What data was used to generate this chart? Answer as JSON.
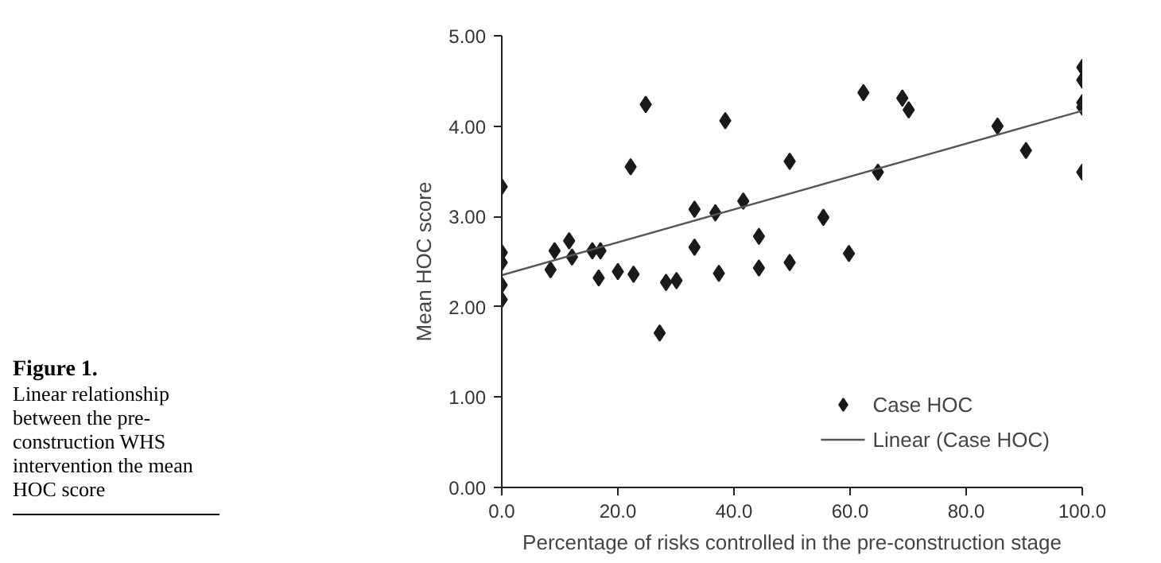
{
  "chart_data": {
    "type": "scatter",
    "title": "Figure 1.",
    "annotations": [
      "Linear relationship between the pre-construction WHS intervention the mean HOC score"
    ],
    "xlabel": "Percentage of risks controlled in the pre-construction stage",
    "ylabel": "Mean HOC score",
    "xlim": [
      0,
      100
    ],
    "ylim": [
      0,
      5
    ],
    "xticks": [
      {
        "value": 0,
        "label": "0.0"
      },
      {
        "value": 20,
        "label": "20.0"
      },
      {
        "value": 40,
        "label": "40.0"
      },
      {
        "value": 60,
        "label": "60.0"
      },
      {
        "value": 80,
        "label": "80.0"
      },
      {
        "value": 100,
        "label": "100.0"
      }
    ],
    "yticks": [
      {
        "value": 0,
        "label": "0.00"
      },
      {
        "value": 1,
        "label": "1.00"
      },
      {
        "value": 2,
        "label": "2.00"
      },
      {
        "value": 3,
        "label": "3.00"
      },
      {
        "value": 4,
        "label": "4.00"
      },
      {
        "value": 5,
        "label": "5.00"
      }
    ],
    "grid": false,
    "legend": "bottom right",
    "series": [
      {
        "name": "Case HOC",
        "marker": "diamond",
        "color": "#1a1a1a",
        "x": [
          0,
          0,
          0,
          0,
          0,
          8.4,
          9.1,
          11.6,
          12.1,
          15.6,
          17,
          16.7,
          20,
          22.2,
          22.7,
          24.8,
          27.2,
          28.3,
          30.1,
          33.2,
          33.2,
          36.8,
          37.4,
          38.5,
          41.6,
          44.3,
          44.3,
          49.6,
          49.6,
          55.4,
          59.8,
          62.3,
          64.8,
          69,
          70.1,
          85.4,
          90.3,
          100,
          100,
          100,
          100,
          100
        ],
        "values": [
          3.33,
          2.6,
          2.49,
          2.24,
          2.08,
          2.41,
          2.62,
          2.73,
          2.55,
          2.62,
          2.62,
          2.32,
          2.39,
          3.55,
          2.36,
          4.24,
          1.71,
          2.27,
          2.29,
          3.08,
          2.66,
          3.04,
          2.37,
          4.06,
          3.17,
          2.78,
          2.43,
          2.49,
          3.61,
          2.99,
          2.59,
          4.37,
          3.49,
          4.31,
          4.18,
          4.0,
          3.73,
          4.65,
          4.51,
          4.26,
          4.21,
          3.49
        ]
      },
      {
        "name": "Linear (Case HOC)",
        "type": "line",
        "line_style": "solid",
        "color": "#555555",
        "x": [
          0,
          100
        ],
        "values": [
          2.35,
          4.17
        ]
      }
    ]
  }
}
